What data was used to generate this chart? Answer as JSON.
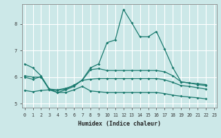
{
  "xlabel": "Humidex (Indice chaleur)",
  "background_color": "#cce8e8",
  "grid_color": "#ffffff",
  "line_color": "#1a7a6e",
  "xlim": [
    -0.3,
    23.3
  ],
  "ylim": [
    4.85,
    8.75
  ],
  "xticks": [
    0,
    1,
    2,
    3,
    4,
    5,
    6,
    7,
    8,
    9,
    10,
    11,
    12,
    13,
    14,
    15,
    16,
    17,
    18,
    19,
    20,
    21,
    22,
    23
  ],
  "yticks": [
    5,
    6,
    7,
    8
  ],
  "series": [
    [
      6.5,
      6.35,
      6.05,
      5.55,
      5.42,
      5.52,
      5.65,
      5.9,
      6.35,
      6.5,
      7.3,
      7.4,
      8.55,
      8.05,
      7.52,
      7.52,
      7.72,
      7.05,
      6.35,
      5.82,
      5.78,
      5.75,
      5.72
    ],
    [
      6.0,
      5.92,
      6.02,
      5.52,
      5.5,
      5.55,
      5.7,
      5.88,
      6.28,
      6.32,
      6.25,
      6.25,
      6.25,
      6.25,
      6.25,
      6.25,
      6.25,
      6.2,
      6.05,
      5.82,
      5.78,
      5.72,
      5.68
    ],
    [
      6.05,
      6.0,
      6.0,
      5.55,
      5.52,
      5.58,
      5.68,
      5.88,
      5.92,
      5.95,
      5.95,
      5.95,
      5.95,
      5.95,
      5.95,
      5.95,
      5.95,
      5.9,
      5.8,
      5.68,
      5.65,
      5.6,
      5.55
    ],
    [
      5.5,
      5.45,
      5.5,
      5.52,
      5.42,
      5.42,
      5.52,
      5.65,
      5.48,
      5.45,
      5.42,
      5.42,
      5.42,
      5.42,
      5.42,
      5.42,
      5.42,
      5.38,
      5.32,
      5.28,
      5.25,
      5.22,
      5.18
    ]
  ]
}
